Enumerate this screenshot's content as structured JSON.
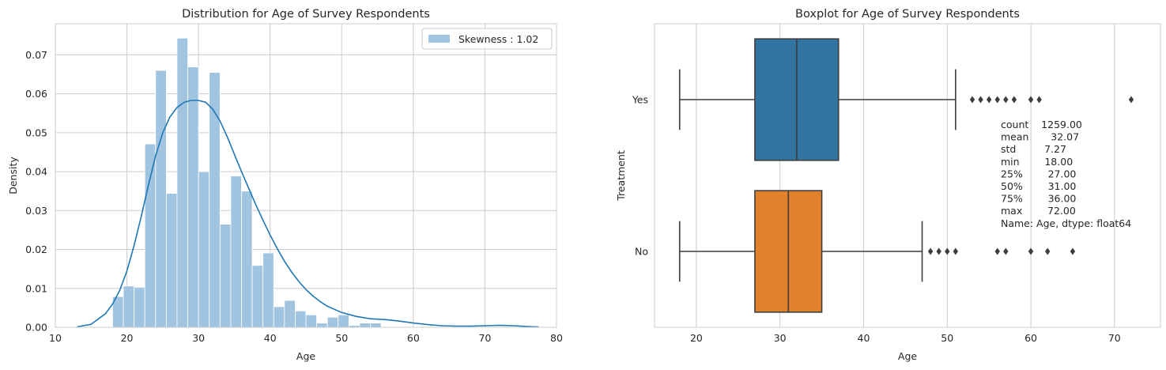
{
  "chart_data": [
    {
      "type": "histogram",
      "title": "Distribution for Age of Survey Respondents",
      "xlabel": "Age",
      "ylabel": "Density",
      "xlim": [
        10,
        80
      ],
      "ylim": [
        0,
        0.078
      ],
      "xticks": [
        10,
        20,
        30,
        40,
        50,
        60,
        70,
        80
      ],
      "xtick_labels": [
        "10",
        "20",
        "30",
        "40",
        "50",
        "60",
        "70",
        "80"
      ],
      "yticks": [
        0.0,
        0.01,
        0.02,
        0.03,
        0.04,
        0.05,
        0.06,
        0.07
      ],
      "ytick_labels": [
        "0.00",
        "0.01",
        "0.02",
        "0.03",
        "0.04",
        "0.05",
        "0.06",
        "0.07"
      ],
      "grid": true,
      "legend": {
        "label": "Skewness : 1.02",
        "placement": "top-right"
      },
      "bins": {
        "start": 18,
        "width": 1.5,
        "values": [
          0.0079,
          0.0106,
          0.0103,
          0.0471,
          0.066,
          0.0344,
          0.0743,
          0.0669,
          0.04,
          0.0655,
          0.0265,
          0.0389,
          0.035,
          0.0159,
          0.0191,
          0.0053,
          0.0069,
          0.0042,
          0.0032,
          0.0011,
          0.0026,
          0.0032,
          0.0005,
          0.0011,
          0.0011
        ]
      },
      "kde": {
        "x": [
          13,
          15,
          17,
          18,
          19,
          20,
          21,
          22,
          23,
          24,
          25,
          26,
          27,
          28,
          29,
          30,
          31,
          32,
          33,
          34,
          35,
          36,
          37,
          38,
          39,
          40,
          41,
          42,
          43,
          44,
          45,
          46,
          47,
          48,
          50,
          52,
          54,
          56,
          58,
          60,
          62,
          64,
          66,
          68,
          70,
          72,
          74,
          76,
          77.5
        ],
        "y": [
          0.0001,
          0.0008,
          0.0035,
          0.006,
          0.0095,
          0.0145,
          0.021,
          0.0285,
          0.0365,
          0.044,
          0.05,
          0.054,
          0.0565,
          0.0578,
          0.0583,
          0.0583,
          0.0578,
          0.056,
          0.053,
          0.049,
          0.0445,
          0.04,
          0.0358,
          0.0315,
          0.0275,
          0.0237,
          0.0202,
          0.017,
          0.0142,
          0.0118,
          0.0097,
          0.008,
          0.0066,
          0.0054,
          0.0038,
          0.0028,
          0.0022,
          0.002,
          0.0016,
          0.0011,
          0.0007,
          0.0004,
          0.0003,
          0.0003,
          0.0004,
          0.0005,
          0.0004,
          0.0002,
          0.0001
        ]
      }
    },
    {
      "type": "boxplot",
      "title": "Boxplot for Age of Survey Respondents",
      "xlabel": "Age",
      "ylabel": "Treatment",
      "xlim": [
        15,
        75.5
      ],
      "xticks": [
        20,
        30,
        40,
        50,
        60,
        70
      ],
      "xtick_labels": [
        "20",
        "30",
        "40",
        "50",
        "60",
        "70"
      ],
      "grid": true,
      "categories": [
        "Yes",
        "No"
      ],
      "boxes": [
        {
          "name": "Yes",
          "color": "#3274a1",
          "whisker_low": 18,
          "q1": 27,
          "median": 32,
          "q3": 37,
          "whisker_high": 51,
          "outliers": [
            53,
            54,
            55,
            56,
            57,
            58,
            60,
            61,
            72
          ]
        },
        {
          "name": "No",
          "color": "#e1812c",
          "whisker_low": 18,
          "q1": 27,
          "median": 31,
          "q3": 35,
          "whisker_high": 47,
          "outliers": [
            48,
            49,
            50,
            51,
            56,
            57,
            60,
            62,
            65
          ]
        }
      ],
      "annotation": [
        "count    1259.00",
        "mean       32.07",
        "std         7.27",
        "min        18.00",
        "25%        27.00",
        "50%        31.00",
        "75%        36.00",
        "max        72.00",
        "Name: Age, dtype: float64"
      ]
    }
  ]
}
